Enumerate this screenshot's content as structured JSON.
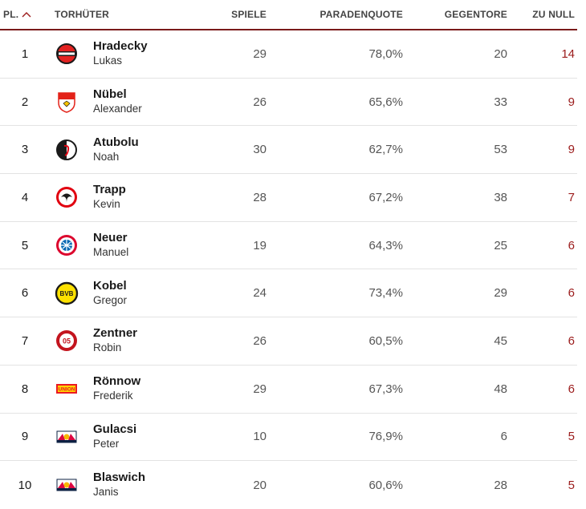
{
  "header": {
    "rank": "PL.",
    "keeper": "TORHÜTER",
    "games": "SPIELE",
    "save_rate": "PARADENQUOTE",
    "goals_against": "GEGENTORE",
    "clean_sheets": "ZU NULL"
  },
  "colors": {
    "accent": "#9b1b1b",
    "divider": "#7a1a1a"
  },
  "rows": [
    {
      "rank": "1",
      "last": "Hradecky",
      "first": "Lukas",
      "games": "29",
      "save_rate": "78,0%",
      "goals_against": "20",
      "clean_sheets": "14",
      "crest": "leverkusen-crest-icon"
    },
    {
      "rank": "2",
      "last": "Nübel",
      "first": "Alexander",
      "games": "26",
      "save_rate": "65,6%",
      "goals_against": "33",
      "clean_sheets": "9",
      "crest": "stuttgart-crest-icon"
    },
    {
      "rank": "3",
      "last": "Atubolu",
      "first": "Noah",
      "games": "30",
      "save_rate": "62,7%",
      "goals_against": "53",
      "clean_sheets": "9",
      "crest": "freiburg-crest-icon"
    },
    {
      "rank": "4",
      "last": "Trapp",
      "first": "Kevin",
      "games": "28",
      "save_rate": "67,2%",
      "goals_against": "38",
      "clean_sheets": "7",
      "crest": "frankfurt-crest-icon"
    },
    {
      "rank": "5",
      "last": "Neuer",
      "first": "Manuel",
      "games": "19",
      "save_rate": "64,3%",
      "goals_against": "25",
      "clean_sheets": "6",
      "crest": "bayern-crest-icon"
    },
    {
      "rank": "6",
      "last": "Kobel",
      "first": "Gregor",
      "games": "24",
      "save_rate": "73,4%",
      "goals_against": "29",
      "clean_sheets": "6",
      "crest": "dortmund-crest-icon"
    },
    {
      "rank": "7",
      "last": "Zentner",
      "first": "Robin",
      "games": "26",
      "save_rate": "60,5%",
      "goals_against": "45",
      "clean_sheets": "6",
      "crest": "mainz-crest-icon"
    },
    {
      "rank": "8",
      "last": "Rönnow",
      "first": "Frederik",
      "games": "29",
      "save_rate": "67,3%",
      "goals_against": "48",
      "clean_sheets": "6",
      "crest": "union-berlin-crest-icon"
    },
    {
      "rank": "9",
      "last": "Gulacsi",
      "first": "Peter",
      "games": "10",
      "save_rate": "76,9%",
      "goals_against": "6",
      "clean_sheets": "5",
      "crest": "leipzig-crest-icon"
    },
    {
      "rank": "10",
      "last": "Blaswich",
      "first": "Janis",
      "games": "20",
      "save_rate": "60,6%",
      "goals_against": "28",
      "clean_sheets": "5",
      "crest": "leipzig-crest-icon"
    }
  ]
}
